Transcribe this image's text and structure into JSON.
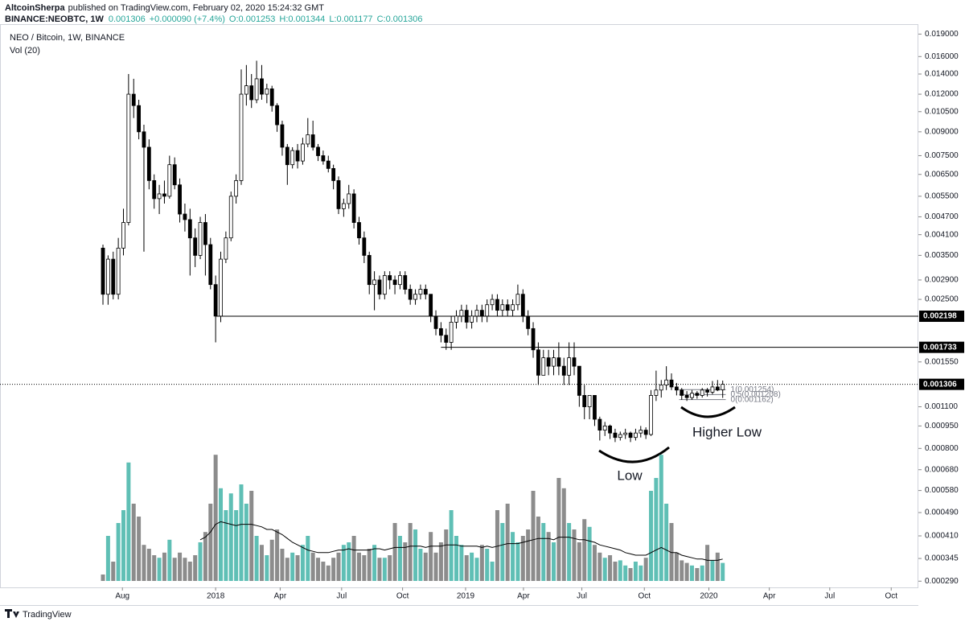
{
  "header": {
    "author": "AltcoinSherpa",
    "published": "published on TradingView.com, February 02, 2020 15:24:32 GMT",
    "symbol": "BINANCE:NEOBTC, 1W",
    "last": "0.001306",
    "change": "+0.000090 (+7.4%)",
    "ohlc_labels": [
      "O:0.001253",
      "H:0.001344",
      "L:0.001177",
      "C:0.001306"
    ]
  },
  "footer": {
    "brand": "TradingView"
  },
  "chart_data": {
    "type": "candlestick",
    "title": "NEO / Bitcoin, 1W, BINANCE",
    "volume_label": "Vol (20)",
    "log_scale": true,
    "grid": false,
    "up_color": "#ffffff",
    "down_color": "#000000",
    "wick_color": "#000000",
    "volume_up_color": "#5fbfb5",
    "volume_down_color": "#8c8c8c",
    "volume_ma_color": "#000000",
    "xlim": [
      -20.1,
      159.2
    ],
    "ylim": [
      0.00028,
      0.0205
    ],
    "vlim": [
      0,
      100
    ],
    "xticks": [
      {
        "value": 3.8,
        "label": "Aug"
      },
      {
        "value": 22,
        "label": "2018"
      },
      {
        "value": 34.6,
        "label": "Apr"
      },
      {
        "value": 46.6,
        "label": "Jul"
      },
      {
        "value": 58.5,
        "label": "Oct"
      },
      {
        "value": 70.8,
        "label": "2019"
      },
      {
        "value": 82.1,
        "label": "Apr"
      },
      {
        "value": 93.5,
        "label": "Jul"
      },
      {
        "value": 105.7,
        "label": "Oct"
      },
      {
        "value": 118.3,
        "label": "2020"
      },
      {
        "value": 130.1,
        "label": "Apr"
      },
      {
        "value": 141.9,
        "label": "Jul"
      },
      {
        "value": 153.9,
        "label": "Oct"
      }
    ],
    "yticks": [
      {
        "value": 0.019,
        "label": "0.019000"
      },
      {
        "value": 0.016,
        "label": "0.016000"
      },
      {
        "value": 0.014,
        "label": "0.014000"
      },
      {
        "value": 0.012,
        "label": "0.012000"
      },
      {
        "value": 0.0105,
        "label": "0.010500"
      },
      {
        "value": 0.009,
        "label": "0.009000"
      },
      {
        "value": 0.0075,
        "label": "0.007500"
      },
      {
        "value": 0.0065,
        "label": "0.006500"
      },
      {
        "value": 0.0055,
        "label": "0.005500"
      },
      {
        "value": 0.0047,
        "label": "0.004700"
      },
      {
        "value": 0.0041,
        "label": "0.004100"
      },
      {
        "value": 0.0035,
        "label": "0.003500"
      },
      {
        "value": 0.0029,
        "label": "0.002900"
      },
      {
        "value": 0.0025,
        "label": "0.002500"
      },
      {
        "value": 0.00155,
        "label": "0.001550"
      },
      {
        "value": 0.0011,
        "label": "0.001100"
      },
      {
        "value": 0.00095,
        "label": "0.000950"
      },
      {
        "value": 0.0008,
        "label": "0.000800"
      },
      {
        "value": 0.00068,
        "label": "0.000680"
      },
      {
        "value": 0.00058,
        "label": "0.000580"
      },
      {
        "value": 0.00049,
        "label": "0.000490"
      },
      {
        "value": 0.00041,
        "label": "0.000410"
      },
      {
        "value": 0.000345,
        "label": "0.000345"
      },
      {
        "value": 0.00029,
        "label": "0.000290"
      }
    ],
    "levels": [
      {
        "value": 0.002198,
        "label": "0.002198"
      },
      {
        "value": 0.001733,
        "label": "0.001733"
      },
      {
        "value": 0.001306,
        "label": "0.001306"
      }
    ],
    "fib": {
      "levels": [
        0.001254,
        0.001208,
        0.001162
      ],
      "labels": [
        "1(0.001254)",
        "0.5(0.001208)",
        "0(0.001162)"
      ]
    },
    "annotations": [
      "Low",
      "Higher Low"
    ],
    "x": [
      0,
      1,
      2,
      3,
      4,
      5,
      6,
      7,
      8,
      9,
      10,
      11,
      12,
      13,
      14,
      15,
      16,
      17,
      18,
      19,
      20,
      21,
      22,
      23,
      24,
      25,
      26,
      27,
      28,
      29,
      30,
      31,
      32,
      33,
      34,
      35,
      36,
      37,
      38,
      39,
      40,
      41,
      42,
      43,
      44,
      45,
      46,
      47,
      48,
      49,
      50,
      51,
      52,
      53,
      54,
      55,
      56,
      57,
      58,
      59,
      60,
      61,
      62,
      63,
      64,
      65,
      66,
      67,
      68,
      69,
      70,
      71,
      72,
      73,
      74,
      75,
      76,
      77,
      78,
      79,
      80,
      81,
      82,
      83,
      84,
      85,
      86,
      87,
      88,
      89,
      90,
      91,
      92,
      93,
      94,
      95,
      96,
      97,
      98,
      99,
      100,
      101,
      102,
      103,
      104,
      105,
      106,
      107,
      108,
      109,
      110,
      111,
      112,
      113,
      114,
      115,
      116,
      117,
      118,
      119,
      120,
      121
    ],
    "open": [
      0.0037,
      0.0026,
      0.0034,
      0.0026,
      0.0037,
      0.0045,
      0.012,
      0.011,
      0.009,
      0.008,
      0.0062,
      0.0054,
      0.0056,
      0.0055,
      0.007,
      0.006,
      0.0048,
      0.0046,
      0.004,
      0.0035,
      0.0045,
      0.0038,
      0.0028,
      0.0022,
      0.0034,
      0.004,
      0.0055,
      0.0062,
      0.012,
      0.0128,
      0.0115,
      0.0135,
      0.012,
      0.0125,
      0.011,
      0.0095,
      0.008,
      0.007,
      0.0078,
      0.0072,
      0.0082,
      0.0088,
      0.008,
      0.0075,
      0.0072,
      0.0068,
      0.0062,
      0.005,
      0.0052,
      0.0056,
      0.0045,
      0.004,
      0.0035,
      0.0028,
      0.0029,
      0.0026,
      0.003,
      0.0029,
      0.0028,
      0.003,
      0.0027,
      0.0025,
      0.0026,
      0.0027,
      0.0026,
      0.0022,
      0.002,
      0.0019,
      0.0018,
      0.0021,
      0.0022,
      0.0023,
      0.0021,
      0.0022,
      0.0023,
      0.0022,
      0.0024,
      0.0025,
      0.0023,
      0.0024,
      0.0023,
      0.0024,
      0.0026,
      0.0022,
      0.002,
      0.0017,
      0.0014,
      0.0016,
      0.0015,
      0.0016,
      0.0015,
      0.0014,
      0.0016,
      0.0015,
      0.0012,
      0.0011,
      0.0012,
      0.001,
      0.00092,
      0.00095,
      0.0009,
      0.00087,
      0.00089,
      0.0009,
      0.00087,
      0.0009,
      0.00092,
      0.00089,
      0.0012,
      0.00125,
      0.0013,
      0.00135,
      0.00128,
      0.00125,
      0.0012,
      0.00118,
      0.00122,
      0.0012,
      0.00125,
      0.00123,
      0.00128,
      0.001253
    ],
    "high": [
      0.0038,
      0.0035,
      0.0036,
      0.004,
      0.005,
      0.014,
      0.0135,
      0.0115,
      0.0095,
      0.0085,
      0.0065,
      0.006,
      0.0062,
      0.0075,
      0.0074,
      0.0063,
      0.0052,
      0.005,
      0.0043,
      0.0047,
      0.0048,
      0.004,
      0.003,
      0.0036,
      0.0042,
      0.0057,
      0.0065,
      0.0145,
      0.015,
      0.014,
      0.0155,
      0.015,
      0.013,
      0.0128,
      0.0112,
      0.0098,
      0.0082,
      0.008,
      0.0082,
      0.0086,
      0.01,
      0.0098,
      0.0082,
      0.0078,
      0.0075,
      0.007,
      0.0064,
      0.0054,
      0.006,
      0.0058,
      0.0047,
      0.0042,
      0.0036,
      0.0031,
      0.003,
      0.0031,
      0.0031,
      0.003,
      0.0031,
      0.0031,
      0.0028,
      0.0027,
      0.0028,
      0.0028,
      0.0026,
      0.0023,
      0.0021,
      0.002,
      0.0022,
      0.0023,
      0.0024,
      0.0024,
      0.0023,
      0.0024,
      0.0024,
      0.0025,
      0.0026,
      0.0026,
      0.0025,
      0.0025,
      0.0025,
      0.0028,
      0.0027,
      0.0023,
      0.0021,
      0.0018,
      0.0017,
      0.0017,
      0.0017,
      0.0018,
      0.0016,
      0.0018,
      0.0018,
      0.0015,
      0.0013,
      0.0012,
      0.0012,
      0.00102,
      0.00098,
      0.00096,
      0.00093,
      0.00091,
      0.00093,
      0.00091,
      0.00093,
      0.00095,
      0.00094,
      0.00125,
      0.00145,
      0.00135,
      0.0015,
      0.00142,
      0.00132,
      0.00127,
      0.00124,
      0.00125,
      0.00124,
      0.00127,
      0.00127,
      0.00134,
      0.00135,
      0.001344
    ],
    "low": [
      0.0024,
      0.0024,
      0.0025,
      0.0025,
      0.0035,
      0.0044,
      0.01,
      0.0085,
      0.0036,
      0.0058,
      0.005,
      0.0048,
      0.0052,
      0.0054,
      0.0058,
      0.0045,
      0.0042,
      0.003,
      0.0032,
      0.0034,
      0.003,
      0.0027,
      0.0018,
      0.0021,
      0.0033,
      0.0039,
      0.0052,
      0.006,
      0.011,
      0.0108,
      0.0112,
      0.0115,
      0.0112,
      0.0105,
      0.009,
      0.0075,
      0.006,
      0.0068,
      0.0068,
      0.007,
      0.008,
      0.0078,
      0.0072,
      0.007,
      0.0066,
      0.0058,
      0.0048,
      0.0047,
      0.005,
      0.0043,
      0.0038,
      0.0033,
      0.0026,
      0.0023,
      0.0025,
      0.0025,
      0.0027,
      0.0026,
      0.0027,
      0.0026,
      0.0024,
      0.0024,
      0.0025,
      0.0025,
      0.0021,
      0.0019,
      0.0018,
      0.0017,
      0.0017,
      0.002,
      0.0021,
      0.002,
      0.002,
      0.0021,
      0.0021,
      0.0021,
      0.0023,
      0.0022,
      0.0022,
      0.0022,
      0.0022,
      0.0023,
      0.0021,
      0.0019,
      0.0016,
      0.0013,
      0.0014,
      0.0014,
      0.0014,
      0.0014,
      0.0013,
      0.0013,
      0.0014,
      0.0011,
      0.001,
      0.001,
      0.00095,
      0.00085,
      0.00088,
      0.00086,
      0.00084,
      0.00085,
      0.00086,
      0.00084,
      0.00085,
      0.00087,
      0.00086,
      0.00088,
      0.00115,
      0.00118,
      0.00125,
      0.00125,
      0.0012,
      0.00116,
      0.00115,
      0.00116,
      0.00117,
      0.00118,
      0.00119,
      0.00121,
      0.00124,
      0.001177
    ],
    "close": [
      0.0026,
      0.0034,
      0.0026,
      0.0037,
      0.0045,
      0.012,
      0.011,
      0.009,
      0.008,
      0.0062,
      0.0054,
      0.0056,
      0.0055,
      0.007,
      0.006,
      0.0048,
      0.0046,
      0.004,
      0.0035,
      0.0045,
      0.0038,
      0.0028,
      0.0022,
      0.0034,
      0.004,
      0.0055,
      0.0062,
      0.012,
      0.0128,
      0.0115,
      0.0135,
      0.012,
      0.0125,
      0.011,
      0.0095,
      0.008,
      0.007,
      0.0078,
      0.0072,
      0.0082,
      0.0088,
      0.008,
      0.0075,
      0.0072,
      0.0068,
      0.0062,
      0.005,
      0.0052,
      0.0056,
      0.0045,
      0.004,
      0.0035,
      0.0028,
      0.0029,
      0.0026,
      0.003,
      0.0029,
      0.0028,
      0.003,
      0.0027,
      0.0025,
      0.0026,
      0.0027,
      0.0026,
      0.0022,
      0.002,
      0.0019,
      0.0018,
      0.0021,
      0.0022,
      0.0023,
      0.0021,
      0.0022,
      0.0023,
      0.0022,
      0.0024,
      0.0025,
      0.0023,
      0.0024,
      0.0023,
      0.0024,
      0.0026,
      0.0022,
      0.002,
      0.0017,
      0.0014,
      0.0016,
      0.0015,
      0.0016,
      0.0015,
      0.0014,
      0.0016,
      0.0015,
      0.0012,
      0.0011,
      0.0012,
      0.001,
      0.00092,
      0.00095,
      0.0009,
      0.00087,
      0.00089,
      0.0009,
      0.00087,
      0.0009,
      0.00092,
      0.00089,
      0.0012,
      0.00125,
      0.0013,
      0.00135,
      0.00128,
      0.00125,
      0.0012,
      0.00118,
      0.00122,
      0.0012,
      0.00125,
      0.00123,
      0.00128,
      0.00125,
      0.001306
    ],
    "volume": [
      5,
      35,
      15,
      45,
      55,
      92,
      60,
      50,
      28,
      25,
      20,
      18,
      22,
      32,
      18,
      22,
      18,
      15,
      20,
      30,
      38,
      60,
      98,
      72,
      55,
      68,
      55,
      75,
      60,
      70,
      35,
      28,
      20,
      32,
      40,
      25,
      18,
      22,
      20,
      28,
      35,
      22,
      18,
      15,
      12,
      18,
      22,
      28,
      30,
      35,
      22,
      20,
      25,
      28,
      18,
      18,
      20,
      45,
      35,
      30,
      45,
      40,
      25,
      22,
      38,
      22,
      30,
      40,
      55,
      35,
      28,
      20,
      22,
      18,
      28,
      25,
      15,
      55,
      45,
      60,
      38,
      30,
      35,
      40,
      70,
      50,
      45,
      38,
      30,
      80,
      72,
      45,
      40,
      30,
      48,
      42,
      28,
      22,
      18,
      20,
      15,
      16,
      12,
      10,
      15,
      12,
      18,
      70,
      80,
      98,
      60,
      45,
      22,
      16,
      14,
      12,
      10,
      12,
      28,
      16,
      22,
      14
    ],
    "volume_ma": [
      null,
      null,
      null,
      null,
      null,
      null,
      null,
      null,
      null,
      null,
      null,
      null,
      null,
      null,
      null,
      null,
      null,
      null,
      null,
      32,
      34,
      38,
      44,
      46,
      45,
      44,
      43,
      44,
      44,
      44,
      43,
      42,
      40,
      40,
      38,
      36,
      33,
      30,
      28,
      26,
      24,
      23,
      22,
      22,
      22,
      23,
      24,
      24,
      25,
      24,
      24,
      24,
      24,
      25,
      25,
      24,
      25,
      26,
      26,
      26,
      27,
      27,
      27,
      26,
      27,
      27,
      27,
      28,
      28,
      28,
      27,
      27,
      27,
      27,
      26,
      27,
      26,
      27,
      28,
      29,
      29,
      29,
      30,
      31,
      32,
      33,
      33,
      33,
      32,
      34,
      34,
      34,
      33,
      32,
      32,
      31,
      30,
      28,
      27,
      26,
      25,
      24,
      22,
      21,
      20,
      20,
      20,
      22,
      24,
      26,
      24,
      22,
      22,
      20,
      19,
      18,
      17,
      17,
      16,
      16,
      16,
      17
    ]
  }
}
